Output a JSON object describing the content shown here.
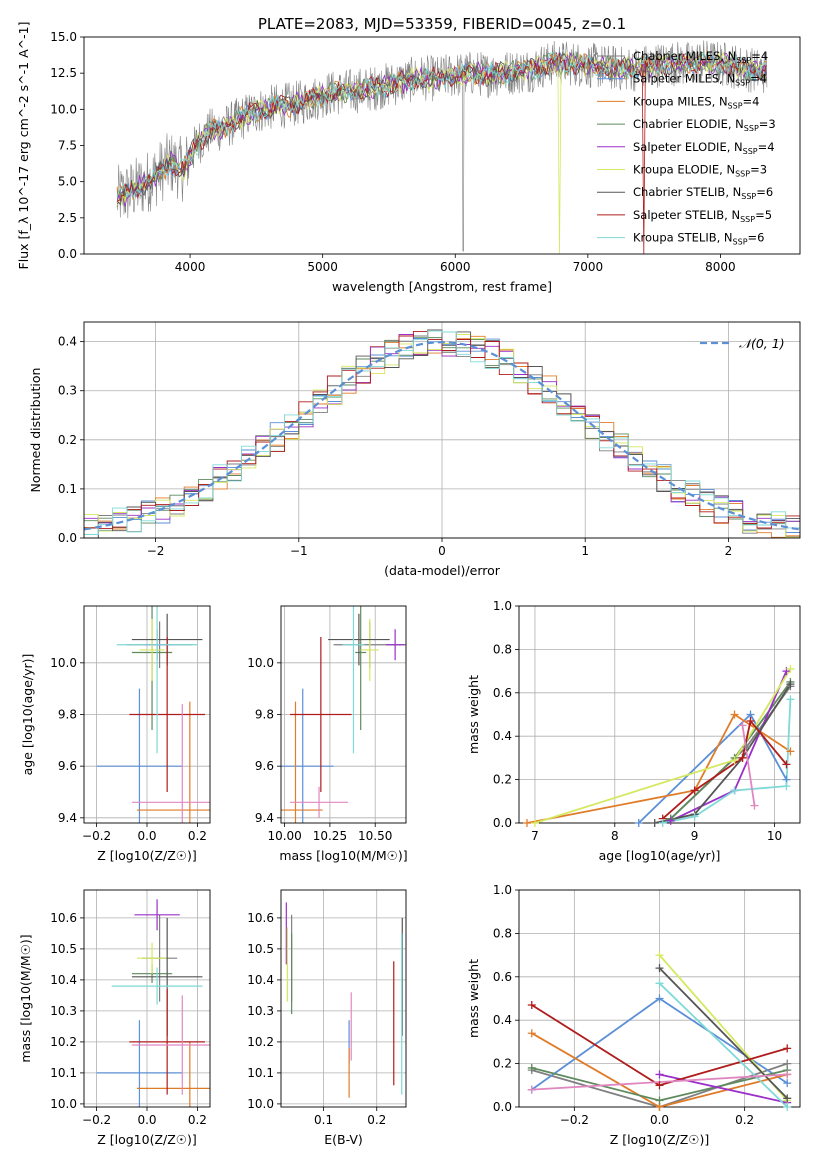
{
  "figure_title": "PLATE=2083, MJD=53359, FIBERID=0045, z=0.1",
  "colors": {
    "Chabrier MILES": "#808080",
    "Salpeter MILES": "#5b8fd6",
    "Kroupa MILES": "#e07b28",
    "Chabrier ELODIE": "#5e8a5e",
    "Salpeter ELODIE": "#9b30c8",
    "Kroupa ELODIE": "#d6e860",
    "Chabrier STELIB": "#555555",
    "Salpeter STELIB": "#b01c1c",
    "Kroupa STELIB": "#7fd9d6",
    "extra_pink": "#e087c0"
  },
  "chart_data": [
    {
      "id": "spectrum",
      "type": "line",
      "xlabel": "wavelength [Angstrom, rest frame]",
      "ylabel": "Flux [f_λ 10^-17 erg cm^-2 s^-1 A^-1]",
      "xlim": [
        3200,
        8600
      ],
      "ylim": [
        0,
        15
      ],
      "xticks": [
        "4000",
        "5000",
        "6000",
        "7000",
        "8000"
      ],
      "yticks": [
        "0.0",
        "2.5",
        "5.0",
        "7.5",
        "10.0",
        "12.5",
        "15.0"
      ],
      "legend_position": "right",
      "legend": [
        "Chabrier MILES, N_SSP=4",
        "Salpeter MILES, N_SSP=4",
        "Kroupa MILES, N_SSP=4",
        "Chabrier ELODIE, N_SSP=3",
        "Salpeter ELODIE, N_SSP=4",
        "Kroupa ELODIE, N_SSP=3",
        "Chabrier STELIB, N_SSP=6",
        "Salpeter STELIB, N_SSP=5",
        "Kroupa STELIB, N_SSP=6"
      ],
      "legend_series": [
        "Chabrier MILES",
        "Salpeter MILES",
        "Kroupa MILES",
        "Chabrier ELODIE",
        "Salpeter ELODIE",
        "Kroupa ELODIE",
        "Chabrier STELIB",
        "Salpeter STELIB",
        "Kroupa STELIB"
      ],
      "model_x": [
        3450,
        3550,
        3650,
        3750,
        3850,
        3950,
        4050,
        4150,
        4250,
        4350,
        4450,
        4550,
        4650,
        4750,
        4850,
        4950,
        5050,
        5150,
        5250,
        5350,
        5450,
        5550,
        5650,
        5750,
        5850,
        5950,
        6050,
        6150,
        6250,
        6350,
        6450,
        6550,
        6650,
        6750,
        6850,
        6950,
        7050,
        7150,
        7250,
        7350,
        7450,
        7550,
        7650,
        7750,
        7850,
        7950,
        8050,
        8150,
        8250,
        8350
      ],
      "model_y": [
        3.9,
        4.3,
        4.8,
        5.5,
        6.3,
        5.8,
        7.6,
        8.5,
        8.7,
        9.2,
        9.7,
        10.0,
        10.2,
        10.3,
        10.5,
        10.8,
        11.1,
        11.2,
        11.3,
        11.4,
        11.6,
        11.8,
        12.0,
        12.2,
        12.1,
        12.3,
        12.4,
        12.5,
        12.4,
        12.5,
        12.6,
        12.7,
        13.0,
        13.2,
        13.2,
        13.1,
        13.0,
        12.9,
        12.8,
        12.8,
        13.0,
        13.1,
        13.2,
        13.1,
        13.3,
        13.2,
        13.1,
        12.9,
        12.7,
        12.6
      ]
    },
    {
      "id": "residuals",
      "type": "histogram",
      "xlabel": "(data-model)/error",
      "ylabel": "Normed distribution",
      "xlim": [
        -2.5,
        2.5
      ],
      "ylim": [
        0,
        0.44
      ],
      "xticks": [
        "−2",
        "−1",
        "0",
        "1",
        "2"
      ],
      "yticks": [
        "0.0",
        "0.1",
        "0.2",
        "0.3",
        "0.4"
      ],
      "grid": true,
      "legend_position": "top-right",
      "legend": [
        "𝒩(0, 1)"
      ],
      "bin_width": 0.1,
      "bin_start": -2.5,
      "hist_series": [
        "Chabrier MILES",
        "Salpeter MILES",
        "Kroupa MILES",
        "Chabrier ELODIE",
        "Salpeter ELODIE",
        "Kroupa ELODIE",
        "Chabrier STELIB",
        "Salpeter STELIB",
        "Kroupa STELIB"
      ]
    },
    {
      "id": "age_vs_Z",
      "type": "errorbar",
      "xlabel": "Z [log10(Z/Z☉)]",
      "ylabel": "age  [log10(age/yr)]",
      "xlim": [
        -0.25,
        0.25
      ],
      "ylim": [
        9.38,
        10.22
      ],
      "xticks": [
        "−0.2",
        "0.0",
        "0.2"
      ],
      "yticks": [
        "9.4",
        "9.6",
        "9.8",
        "10.0"
      ],
      "grid": true,
      "points": [
        {
          "series": "Chabrier MILES",
          "x": 0.05,
          "xerr": 0.13,
          "y": 10.07,
          "yerr": 0.09
        },
        {
          "series": "Salpeter MILES",
          "x": -0.03,
          "xerr": 0.17,
          "y": 9.6,
          "yerr": 0.3
        },
        {
          "series": "Kroupa MILES",
          "x": 0.17,
          "xerr": 0.21,
          "y": 9.43,
          "yerr": 0.42
        },
        {
          "series": "Chabrier ELODIE",
          "x": 0.02,
          "xerr": 0.08,
          "y": 10.04,
          "yerr": 0.3
        },
        {
          "series": "Salpeter ELODIE",
          "x": 0.04,
          "xerr": 0.05,
          "y": 10.07,
          "yerr": 0.06
        },
        {
          "series": "Kroupa ELODIE",
          "x": 0.02,
          "xerr": 0.05,
          "y": 10.05,
          "yerr": 0.12
        },
        {
          "series": "Chabrier STELIB",
          "x": 0.08,
          "xerr": 0.14,
          "y": 10.09,
          "yerr": 0.1
        },
        {
          "series": "Salpeter STELIB",
          "x": 0.08,
          "xerr": 0.15,
          "y": 9.8,
          "yerr": 0.3
        },
        {
          "series": "Kroupa STELIB",
          "x": 0.04,
          "xerr": 0.16,
          "y": 10.07,
          "yerr": 0.42
        },
        {
          "series": "extra_pink",
          "x": 0.14,
          "xerr": 0.2,
          "y": 9.46,
          "yerr": 0.38
        }
      ]
    },
    {
      "id": "age_vs_mass",
      "type": "errorbar",
      "xlabel": "mass [log10(M/M☉)]",
      "ylabel": "",
      "xlim": [
        9.98,
        10.67
      ],
      "ylim": [
        9.38,
        10.22
      ],
      "xticks": [
        "10.00",
        "10.25",
        "10.50"
      ],
      "yticks": [
        "9.4",
        "9.6",
        "9.8",
        "10.0"
      ],
      "grid": true,
      "points": [
        {
          "series": "Chabrier MILES",
          "x": 10.47,
          "xerr": 0.2,
          "y": 10.07,
          "yerr": 0.09
        },
        {
          "series": "Salpeter MILES",
          "x": 10.1,
          "xerr": 0.17,
          "y": 9.6,
          "yerr": 0.3
        },
        {
          "series": "Kroupa MILES",
          "x": 10.06,
          "xerr": 0.15,
          "y": 9.43,
          "yerr": 0.42
        },
        {
          "series": "Chabrier ELODIE",
          "x": 10.42,
          "xerr": 0.03,
          "y": 10.04,
          "yerr": 0.3
        },
        {
          "series": "Salpeter ELODIE",
          "x": 10.61,
          "xerr": 0.05,
          "y": 10.07,
          "yerr": 0.06
        },
        {
          "series": "Kroupa ELODIE",
          "x": 10.47,
          "xerr": 0.05,
          "y": 10.05,
          "yerr": 0.12
        },
        {
          "series": "Chabrier STELIB",
          "x": 10.41,
          "xerr": 0.17,
          "y": 10.09,
          "yerr": 0.1
        },
        {
          "series": "Salpeter STELIB",
          "x": 10.2,
          "xerr": 0.17,
          "y": 9.8,
          "yerr": 0.3
        },
        {
          "series": "Kroupa STELIB",
          "x": 10.38,
          "xerr": 0.06,
          "y": 10.07,
          "yerr": 0.42
        },
        {
          "series": "extra_pink",
          "x": 10.19,
          "xerr": 0.16,
          "y": 9.46,
          "yerr": 0.06
        }
      ]
    },
    {
      "id": "massweight_vs_age",
      "type": "line",
      "xlabel": "age  [log10(age/yr)]",
      "ylabel": "mass weight",
      "xlim": [
        6.8,
        10.32
      ],
      "ylim": [
        0,
        1
      ],
      "xticks": [
        "7",
        "8",
        "9",
        "10"
      ],
      "yticks": [
        "0.0",
        "0.2",
        "0.4",
        "0.6",
        "0.8",
        "1.0"
      ],
      "grid": true,
      "series": [
        {
          "name": "Chabrier MILES",
          "x": [
            8.7,
            9.65,
            10.2
          ],
          "y": [
            0.02,
            0.35,
            0.63
          ]
        },
        {
          "name": "Salpeter MILES",
          "x": [
            8.3,
            9.7,
            10.15
          ],
          "y": [
            0.0,
            0.5,
            0.2
          ]
        },
        {
          "name": "Kroupa MILES",
          "x": [
            6.9,
            9.0,
            9.5,
            10.2
          ],
          "y": [
            0.0,
            0.15,
            0.5,
            0.33
          ]
        },
        {
          "name": "Chabrier ELODIE",
          "x": [
            8.7,
            9.5,
            10.2
          ],
          "y": [
            0.02,
            0.3,
            0.65
          ]
        },
        {
          "name": "Salpeter ELODIE",
          "x": [
            8.7,
            9.5,
            10.15
          ],
          "y": [
            0.01,
            0.15,
            0.7
          ]
        },
        {
          "name": "Kroupa ELODIE",
          "x": [
            7.0,
            9.5,
            10.2
          ],
          "y": [
            0.0,
            0.29,
            0.71
          ]
        },
        {
          "name": "Chabrier STELIB",
          "x": [
            8.5,
            9.0,
            9.6,
            10.2
          ],
          "y": [
            0.0,
            0.04,
            0.3,
            0.64
          ]
        },
        {
          "name": "Salpeter STELIB",
          "x": [
            8.6,
            9.0,
            9.6,
            9.7,
            10.15
          ],
          "y": [
            0.02,
            0.15,
            0.3,
            0.47,
            0.27
          ]
        },
        {
          "name": "Kroupa STELIB",
          "x": [
            8.6,
            9.0,
            9.5,
            10.15,
            10.2
          ],
          "y": [
            0.0,
            0.03,
            0.15,
            0.17,
            0.57
          ]
        },
        {
          "name": "extra_pink",
          "x": [
            9.6,
            9.75
          ],
          "y": [
            0.45,
            0.08
          ]
        }
      ]
    },
    {
      "id": "mass_vs_Z",
      "type": "errorbar",
      "xlabel": "Z [log10(Z/Z☉)]",
      "ylabel": "mass [log10(M/M☉)]",
      "xlim": [
        -0.25,
        0.25
      ],
      "ylim": [
        9.99,
        10.69
      ],
      "xticks": [
        "−0.2",
        "0.0",
        "0.2"
      ],
      "yticks": [
        "10.0",
        "10.1",
        "10.2",
        "10.3",
        "10.4",
        "10.5",
        "10.6"
      ],
      "grid": true,
      "points": [
        {
          "series": "Chabrier MILES",
          "x": 0.05,
          "xerr": 0.07,
          "y": 10.47,
          "yerr": 0.14
        },
        {
          "series": "Salpeter MILES",
          "x": -0.03,
          "xerr": 0.17,
          "y": 10.1,
          "yerr": 0.17
        },
        {
          "series": "Kroupa MILES",
          "x": 0.17,
          "xerr": 0.21,
          "y": 10.05,
          "yerr": 0.15
        },
        {
          "series": "Chabrier ELODIE",
          "x": 0.02,
          "xerr": 0.08,
          "y": 10.42,
          "yerr": 0.03
        },
        {
          "series": "Salpeter ELODIE",
          "x": 0.04,
          "xerr": 0.09,
          "y": 10.61,
          "yerr": 0.05
        },
        {
          "series": "Kroupa ELODIE",
          "x": 0.02,
          "xerr": 0.06,
          "y": 10.47,
          "yerr": 0.05
        },
        {
          "series": "Chabrier STELIB",
          "x": 0.08,
          "xerr": 0.14,
          "y": 10.41,
          "yerr": 0.19
        },
        {
          "series": "Salpeter STELIB",
          "x": 0.08,
          "xerr": 0.15,
          "y": 10.2,
          "yerr": 0.17
        },
        {
          "series": "Kroupa STELIB",
          "x": 0.04,
          "xerr": 0.18,
          "y": 10.38,
          "yerr": 0.06
        },
        {
          "series": "extra_pink",
          "x": 0.14,
          "xerr": 0.2,
          "y": 10.19,
          "yerr": 0.16
        }
      ]
    },
    {
      "id": "mass_vs_EBV",
      "type": "errorbar",
      "xlabel": "E(B-V)",
      "ylabel": "",
      "xlim": [
        0.02,
        0.255
      ],
      "ylim": [
        9.99,
        10.69
      ],
      "xticks": [
        "0.1",
        "0.2"
      ],
      "yticks": [
        "10.0",
        "10.1",
        "10.2",
        "10.3",
        "10.4",
        "10.5",
        "10.6"
      ],
      "grid": true,
      "points": [
        {
          "series": "Chabrier MILES",
          "x": 0.04,
          "xerr": 0,
          "y": 10.47,
          "yerr": 0.14
        },
        {
          "series": "Salpeter MILES",
          "x": 0.148,
          "xerr": 0,
          "y": 10.2,
          "yerr": 0.07
        },
        {
          "series": "Kroupa MILES",
          "x": 0.148,
          "xerr": 0,
          "y": 10.1,
          "yerr": 0.08
        },
        {
          "series": "Chabrier ELODIE",
          "x": 0.04,
          "xerr": 0,
          "y": 10.42,
          "yerr": 0.13
        },
        {
          "series": "Salpeter ELODIE",
          "x": 0.03,
          "xerr": 0,
          "y": 10.55,
          "yerr": 0.1
        },
        {
          "series": "Kroupa ELODIE",
          "x": 0.032,
          "xerr": 0,
          "y": 10.45,
          "yerr": 0.12
        },
        {
          "series": "Chabrier STELIB",
          "x": 0.248,
          "xerr": 0,
          "y": 10.41,
          "yerr": 0.19
        },
        {
          "series": "Salpeter STELIB",
          "x": 0.232,
          "xerr": 0,
          "y": 10.26,
          "yerr": 0.2
        },
        {
          "series": "Kroupa STELIB",
          "x": 0.247,
          "xerr": 0,
          "y": 10.29,
          "yerr": 0.26
        },
        {
          "series": "extra_pink",
          "x": 0.152,
          "xerr": 0,
          "y": 10.25,
          "yerr": 0.11
        }
      ]
    },
    {
      "id": "massweight_vs_Z",
      "type": "line",
      "xlabel": "Z [log10(Z/Z☉)]",
      "ylabel": "mass weight",
      "xlim": [
        -0.33,
        0.33
      ],
      "ylim": [
        0,
        1
      ],
      "xticks": [
        "−0.2",
        "0.0",
        "0.2"
      ],
      "yticks": [
        "0.0",
        "0.2",
        "0.4",
        "0.6",
        "0.8",
        "1.0"
      ],
      "grid": true,
      "series": [
        {
          "name": "Chabrier MILES",
          "x": [
            -0.3,
            0.0,
            0.3
          ],
          "y": [
            0.17,
            0.0,
            0.2
          ]
        },
        {
          "name": "Salpeter MILES",
          "x": [
            -0.3,
            0.0,
            0.3
          ],
          "y": [
            0.08,
            0.5,
            0.11
          ]
        },
        {
          "name": "Kroupa MILES",
          "x": [
            -0.3,
            0.0,
            0.3
          ],
          "y": [
            0.34,
            0.0,
            0.15
          ]
        },
        {
          "name": "Chabrier ELODIE",
          "x": [
            -0.3,
            0.0,
            0.3
          ],
          "y": [
            0.18,
            0.03,
            0.17
          ]
        },
        {
          "name": "Salpeter ELODIE",
          "x": [
            0.0,
            0.3
          ],
          "y": [
            0.15,
            0.02
          ]
        },
        {
          "name": "Kroupa ELODIE",
          "x": [
            0.0,
            0.3
          ],
          "y": [
            0.7,
            0.03
          ]
        },
        {
          "name": "Chabrier STELIB",
          "x": [
            0.0,
            0.3
          ],
          "y": [
            0.64,
            0.04
          ]
        },
        {
          "name": "Salpeter STELIB",
          "x": [
            -0.3,
            0.0,
            0.3
          ],
          "y": [
            0.47,
            0.1,
            0.27
          ]
        },
        {
          "name": "Kroupa STELIB",
          "x": [
            0.0,
            0.3
          ],
          "y": [
            0.57,
            0.0
          ]
        },
        {
          "name": "extra_pink",
          "x": [
            -0.3,
            0.3
          ],
          "y": [
            0.08,
            0.15
          ]
        }
      ]
    }
  ]
}
